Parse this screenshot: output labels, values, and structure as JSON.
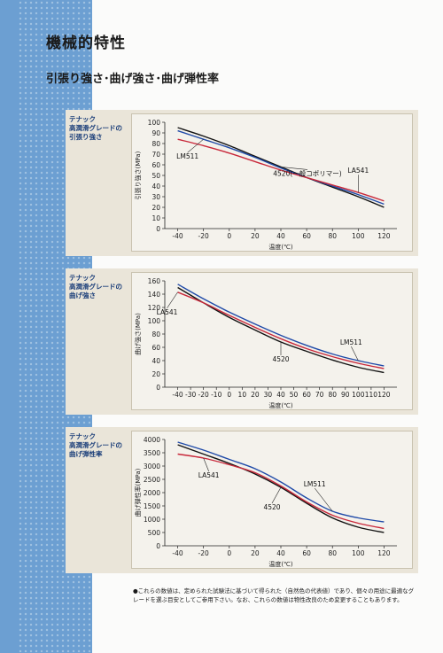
{
  "page": {
    "title": "機械的特性",
    "subtitle": "引張り強さ･曲げ強さ･曲げ弾性率",
    "footnote": "●これらの数値は、定められた試験法に基づいて得られた（自然色の代表値）であり、個々の用途に最適なグレードを選ぶ目安としてご参用下さい。なお、これらの数値は物性改良のため変更することもあります。"
  },
  "colors": {
    "series_4520": "#111111",
    "series_LM511": "#1f4aa8",
    "series_LA541": "#c8283a",
    "sidebar": "#6c9fd2"
  },
  "panels": [
    {
      "label_lines": [
        "テナック",
        "高潤滑グレードの",
        "引張り強さ"
      ]
    },
    {
      "label_lines": [
        "テナック",
        "高潤滑グレードの",
        "曲げ強さ"
      ]
    },
    {
      "label_lines": [
        "テナック",
        "高潤滑グレードの",
        "曲げ弾性率"
      ]
    }
  ],
  "chart_data": [
    {
      "type": "line",
      "xlabel": "温度(℃)",
      "ylabel": "引張り強さ(MPa)",
      "xlim": [
        -50,
        130
      ],
      "ylim": [
        0,
        100
      ],
      "xticks": [
        -40,
        -20,
        0,
        20,
        40,
        60,
        80,
        100,
        120
      ],
      "yticks": [
        0,
        10,
        20,
        30,
        40,
        50,
        60,
        70,
        80,
        90,
        100
      ],
      "grid": false,
      "series": [
        {
          "name": "4520(一般コポリマー)",
          "color_key": "series_4520",
          "x": [
            -40,
            -20,
            0,
            20,
            40,
            60,
            80,
            100,
            120
          ],
          "y": [
            95,
            87,
            78,
            68,
            58,
            48,
            39,
            30,
            20
          ]
        },
        {
          "name": "LM511",
          "color_key": "series_LM511",
          "x": [
            -40,
            -20,
            0,
            20,
            40,
            60,
            80,
            100,
            120
          ],
          "y": [
            92,
            84,
            76,
            67,
            57,
            48,
            40,
            32,
            23
          ]
        },
        {
          "name": "LA541",
          "color_key": "series_LA541",
          "x": [
            -40,
            -20,
            0,
            20,
            40,
            60,
            80,
            100,
            120
          ],
          "y": [
            84,
            78,
            71,
            63,
            55,
            48,
            41,
            34,
            26
          ]
        }
      ],
      "annotations": [
        "LM511",
        "4520(一般コポリマー)",
        "LA541"
      ]
    },
    {
      "type": "line",
      "xlabel": "温度(℃)",
      "ylabel": "曲げ強さ(MPa)",
      "xlim": [
        -50,
        130
      ],
      "ylim": [
        0,
        160
      ],
      "xticks": [
        -40,
        -30,
        -20,
        -10,
        0,
        10,
        20,
        30,
        40,
        50,
        60,
        70,
        80,
        90,
        100,
        110,
        120
      ],
      "yticks": [
        0,
        20,
        40,
        60,
        80,
        100,
        120,
        140,
        160
      ],
      "grid": false,
      "series": [
        {
          "name": "4520",
          "color_key": "series_4520",
          "x": [
            -40,
            -20,
            0,
            20,
            40,
            60,
            80,
            100,
            120
          ],
          "y": [
            150,
            127,
            105,
            86,
            68,
            54,
            41,
            30,
            22
          ]
        },
        {
          "name": "LM511",
          "color_key": "series_LM511",
          "x": [
            -40,
            -20,
            0,
            20,
            40,
            60,
            80,
            100,
            120
          ],
          "y": [
            155,
            133,
            113,
            95,
            78,
            63,
            50,
            40,
            32
          ]
        },
        {
          "name": "LA541",
          "color_key": "series_LA541",
          "x": [
            -40,
            -20,
            0,
            20,
            40,
            60,
            80,
            100,
            120
          ],
          "y": [
            143,
            127,
            108,
            90,
            73,
            58,
            46,
            36,
            28
          ]
        }
      ],
      "annotations": [
        "LA541",
        "4520",
        "LM511"
      ]
    },
    {
      "type": "line",
      "xlabel": "温度(℃)",
      "ylabel": "曲げ弾性率(MPa)",
      "xlim": [
        -50,
        130
      ],
      "ylim": [
        0,
        4000
      ],
      "xticks": [
        -40,
        -20,
        0,
        20,
        40,
        60,
        80,
        100,
        120
      ],
      "yticks": [
        0,
        500,
        1000,
        1500,
        2000,
        2500,
        3000,
        3500,
        4000
      ],
      "grid": false,
      "series": [
        {
          "name": "4520",
          "color_key": "series_4520",
          "x": [
            -40,
            -20,
            0,
            20,
            40,
            60,
            80,
            100,
            120
          ],
          "y": [
            3800,
            3450,
            3100,
            2700,
            2200,
            1600,
            1050,
            700,
            500
          ]
        },
        {
          "name": "LM511",
          "color_key": "series_LM511",
          "x": [
            -40,
            -20,
            0,
            20,
            40,
            60,
            80,
            100,
            120
          ],
          "y": [
            3900,
            3600,
            3250,
            2900,
            2400,
            1800,
            1300,
            1050,
            900
          ]
        },
        {
          "name": "LA541",
          "color_key": "series_LA541",
          "x": [
            -40,
            -20,
            0,
            20,
            40,
            60,
            80,
            100,
            120
          ],
          "y": [
            3450,
            3300,
            3050,
            2750,
            2250,
            1650,
            1150,
            850,
            650
          ]
        }
      ],
      "annotations": [
        "LA541",
        "4520",
        "LM511"
      ]
    }
  ]
}
